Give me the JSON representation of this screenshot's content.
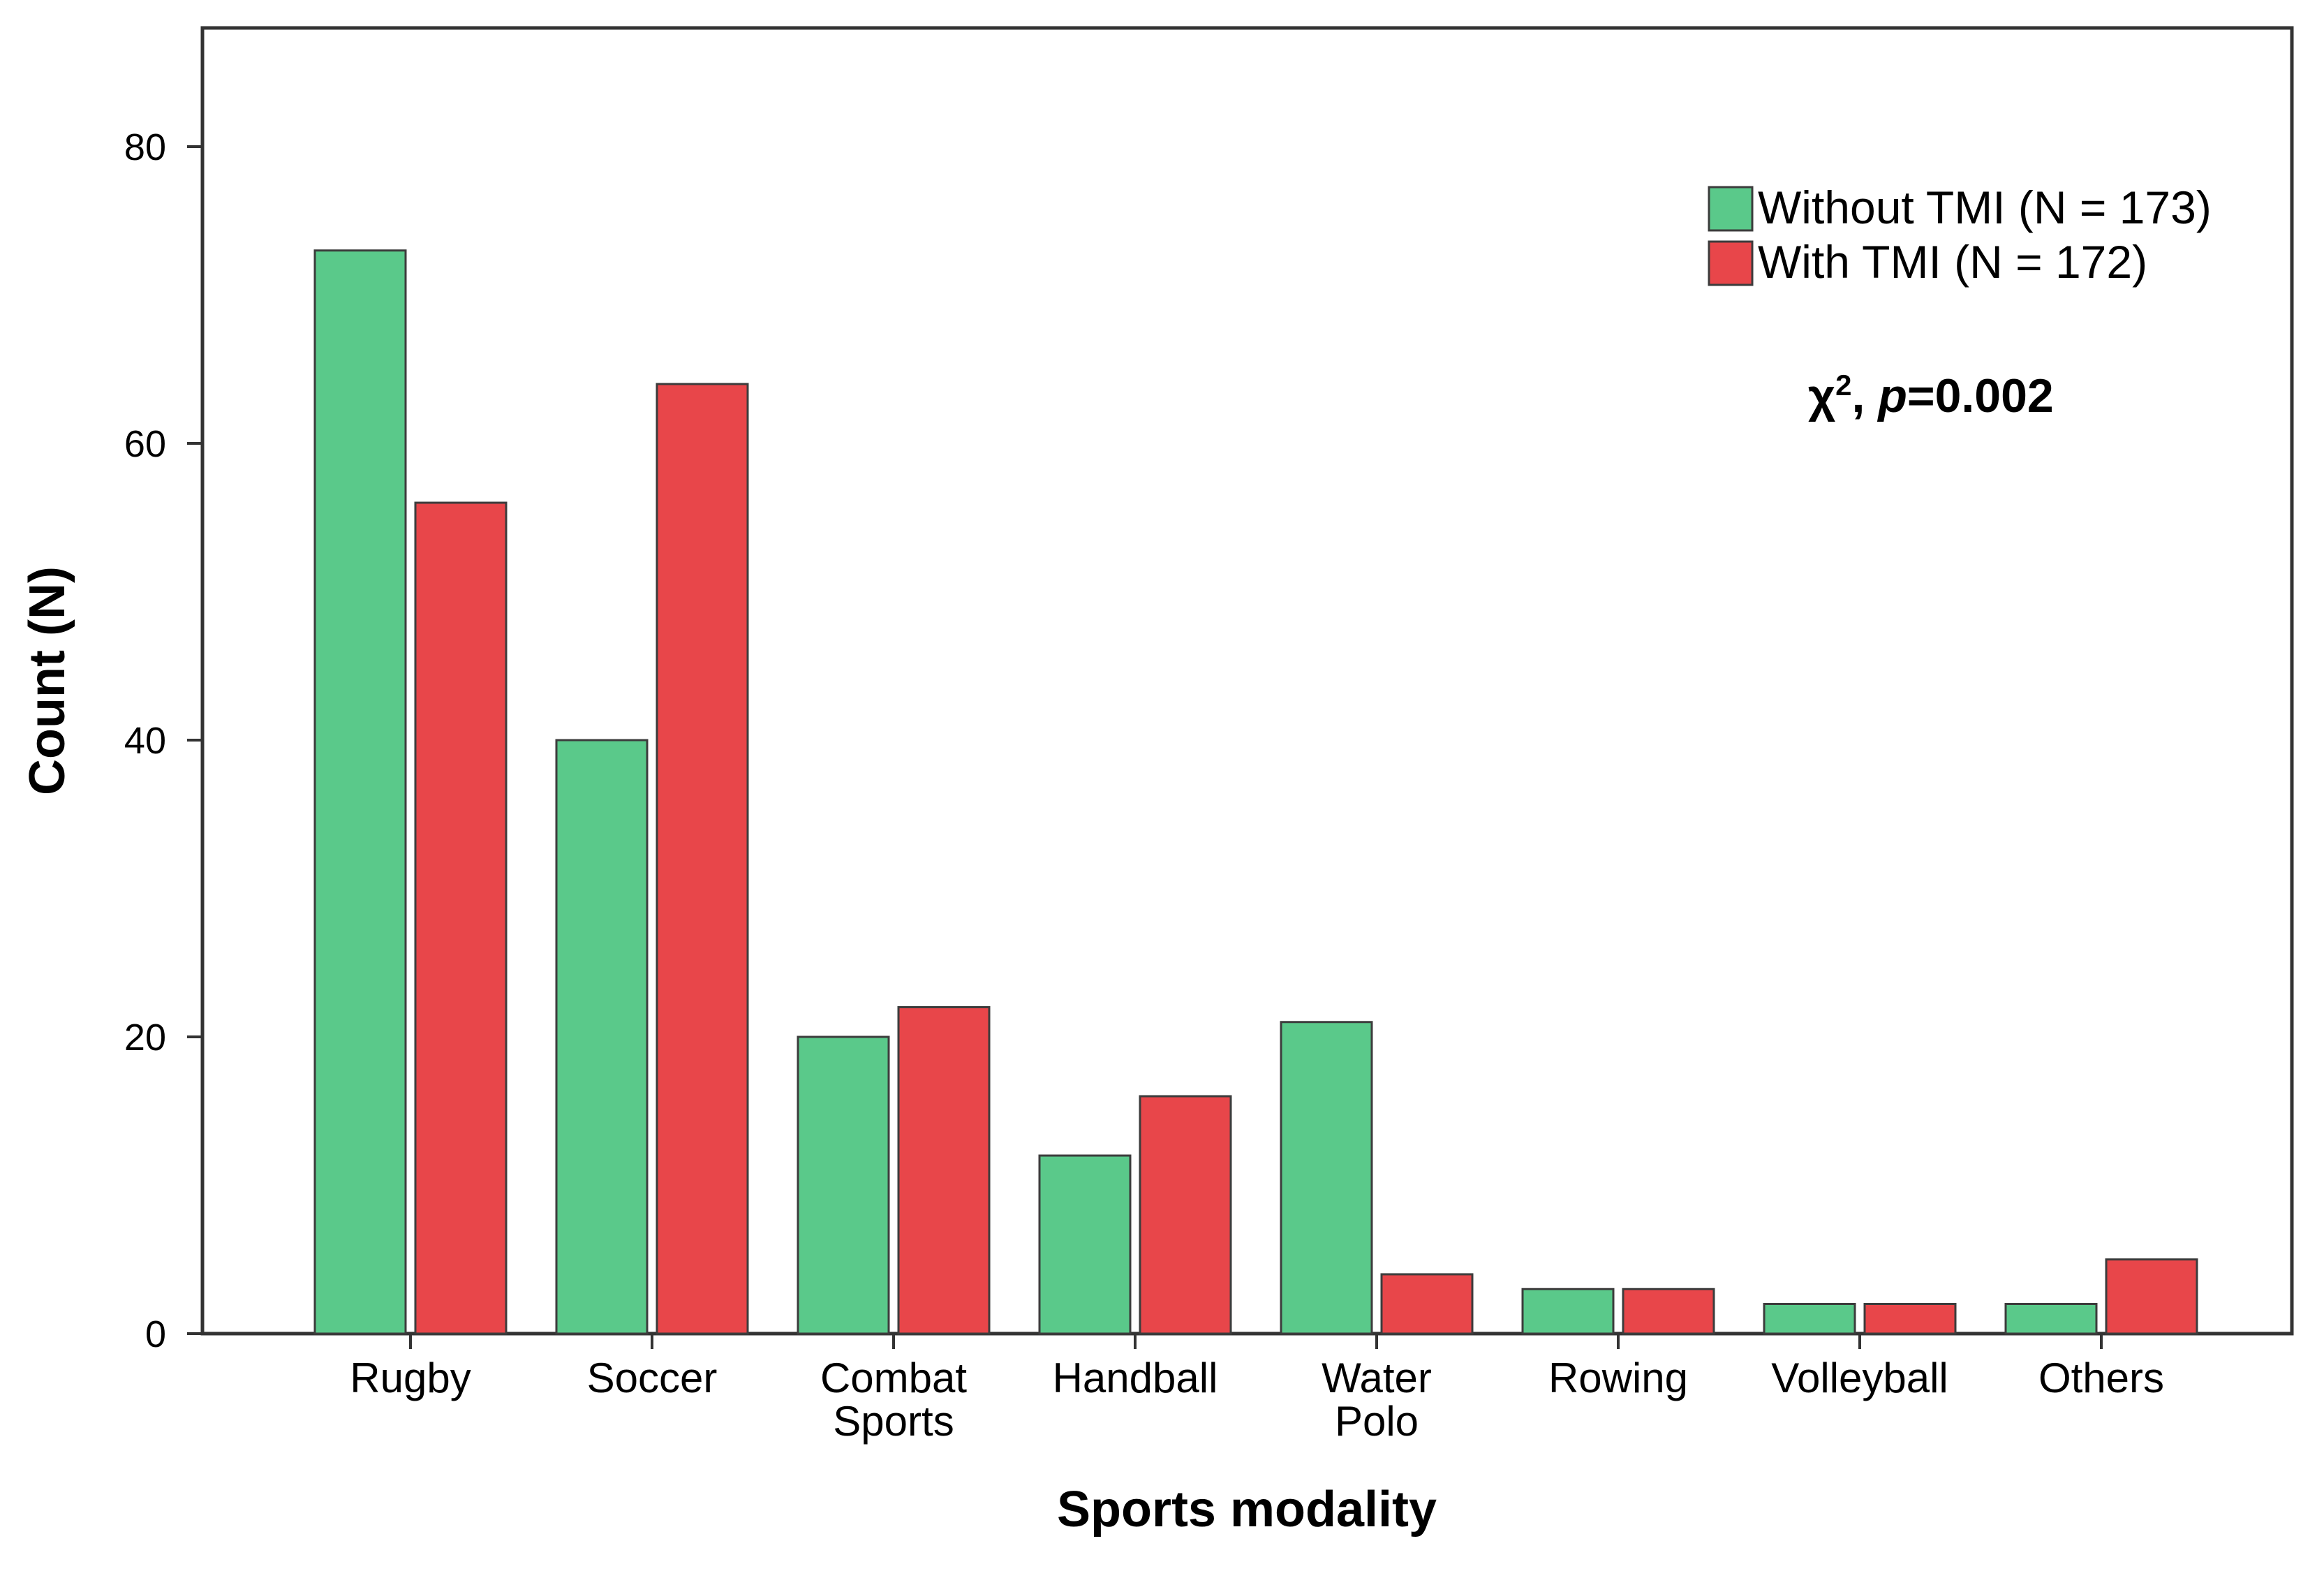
{
  "chart_data": {
    "type": "bar",
    "title": "",
    "xlabel": "Sports modality",
    "ylabel": "Count (N)",
    "ylim": [
      0,
      88
    ],
    "yticks": [
      0,
      20,
      40,
      60,
      80
    ],
    "grid": false,
    "legend_position": "top-right",
    "categories": [
      [
        "Rugby"
      ],
      [
        "Soccer"
      ],
      [
        "Combat",
        "Sports"
      ],
      [
        "Handball"
      ],
      [
        "Water",
        "Polo"
      ],
      [
        "Rowing"
      ],
      [
        "Volleyball"
      ],
      [
        "Others"
      ]
    ],
    "series": [
      {
        "name": "Without TMI (N = 173)",
        "color": "#5ac98a",
        "values": [
          73,
          40,
          20,
          12,
          21,
          3,
          2,
          2
        ]
      },
      {
        "name": "With TMI (N = 172)",
        "color": "#e8464a",
        "values": [
          56,
          64,
          22,
          16,
          4,
          3,
          2,
          5
        ]
      }
    ],
    "annotation": {
      "prefix": "χ",
      "superscript": "2",
      "sep": ", ",
      "italic": "p",
      "suffix": "=0.002"
    }
  }
}
